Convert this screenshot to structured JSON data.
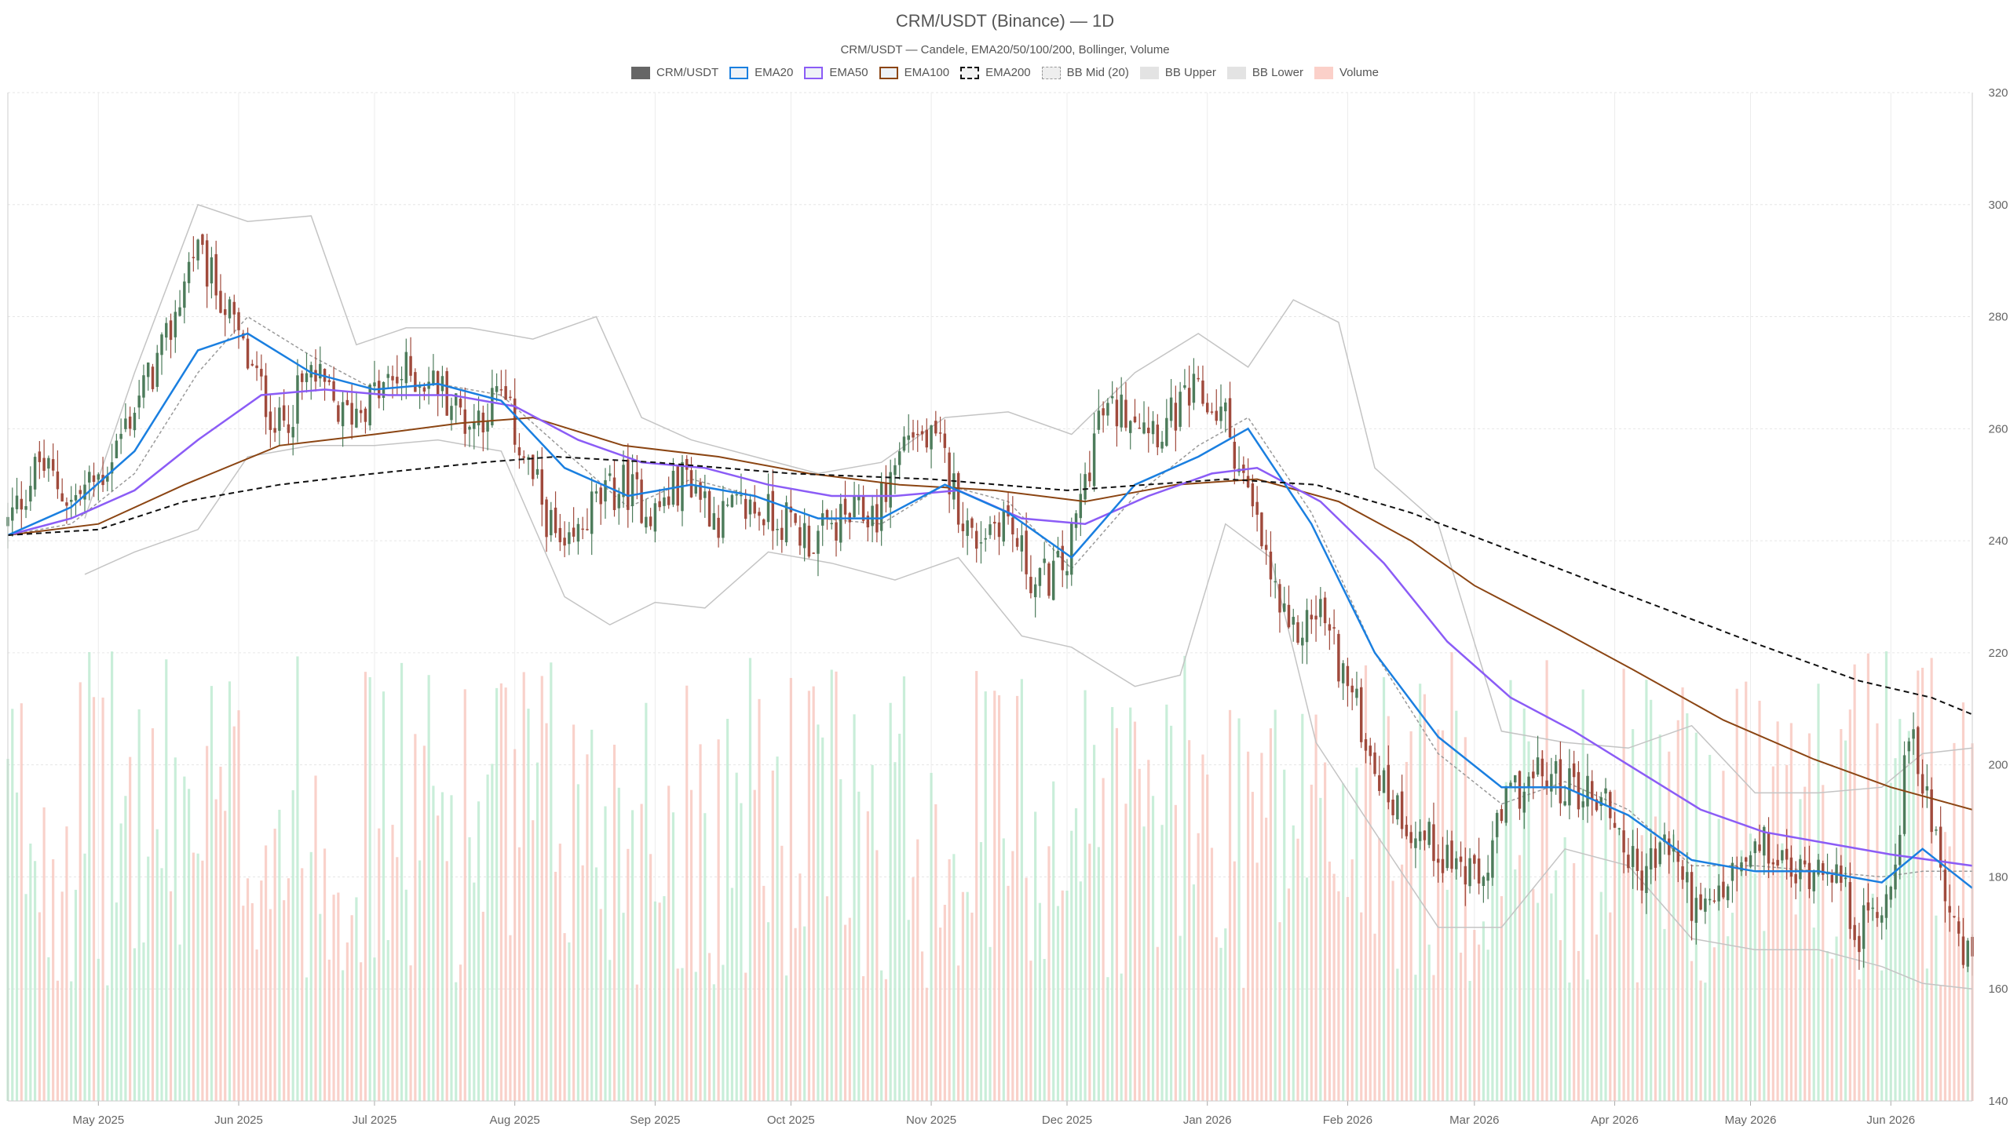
{
  "chart_data": {
    "type": "candlestick",
    "title": "CRM/USDT (Binance) — 1D",
    "subtitle": "CRM/USDT — Candele, EMA20/50/100/200, Bollinger, Volume",
    "legend": [
      {
        "label": "CRM/USDT",
        "color": "#666666",
        "style": "solid"
      },
      {
        "label": "EMA20",
        "color": "#1a7fe0",
        "style": "line"
      },
      {
        "label": "EMA50",
        "color": "#8b5cf6",
        "style": "line"
      },
      {
        "label": "EMA100",
        "color": "#8b4513",
        "style": "line"
      },
      {
        "label": "EMA200",
        "color": "#111111",
        "style": "dashed"
      },
      {
        "label": "BB Mid (20)",
        "color": "#999999",
        "style": "dotted"
      },
      {
        "label": "BB Upper",
        "color": "#bbbbbb",
        "style": "line"
      },
      {
        "label": "BB Lower",
        "color": "#bbbbbb",
        "style": "line"
      },
      {
        "label": "Volume",
        "color": "#f4a9a0",
        "style": "solid"
      }
    ],
    "colors": {
      "up": "#4d7c5b",
      "down": "#a04a3c",
      "vol_up": "#b7e8cc",
      "vol_down": "#f7c1b8"
    },
    "y_axis": {
      "min": 140,
      "max": 320,
      "ticks": [
        140,
        160,
        180,
        200,
        220,
        240,
        260,
        280,
        300,
        320
      ]
    },
    "x_range": [
      "2025-04-11",
      "2026-06-19"
    ],
    "x_ticks": [
      {
        "label": "May 2025",
        "date": "2025-05-01"
      },
      {
        "label": "Jun 2025",
        "date": "2025-06-01"
      },
      {
        "label": "Jul 2025",
        "date": "2025-07-01"
      },
      {
        "label": "Aug 2025",
        "date": "2025-08-01"
      },
      {
        "label": "Sep 2025",
        "date": "2025-09-01"
      },
      {
        "label": "Oct 2025",
        "date": "2025-10-01"
      },
      {
        "label": "Nov 2025",
        "date": "2025-11-01"
      },
      {
        "label": "Dec 2025",
        "date": "2025-12-01"
      },
      {
        "label": "Jan 2026",
        "date": "2026-01-01"
      },
      {
        "label": "Feb 2026",
        "date": "2026-02-01"
      },
      {
        "label": "Mar 2026",
        "date": "2026-03-01"
      },
      {
        "label": "Apr 2026",
        "date": "2026-04-01"
      },
      {
        "label": "May 2026",
        "date": "2026-05-01"
      },
      {
        "label": "Jun 2026",
        "date": "2026-06-01"
      }
    ],
    "close_anchors": [
      [
        "2025-04-11",
        243
      ],
      [
        "2025-04-18",
        254
      ],
      [
        "2025-04-25",
        247
      ],
      [
        "2025-05-02",
        252
      ],
      [
        "2025-05-09",
        264
      ],
      [
        "2025-05-16",
        275
      ],
      [
        "2025-05-22",
        292
      ],
      [
        "2025-05-28",
        284
      ],
      [
        "2025-06-03",
        272
      ],
      [
        "2025-06-10",
        260
      ],
      [
        "2025-06-17",
        270
      ],
      [
        "2025-06-24",
        262
      ],
      [
        "2025-07-01",
        266
      ],
      [
        "2025-07-08",
        270
      ],
      [
        "2025-07-15",
        268
      ],
      [
        "2025-07-22",
        261
      ],
      [
        "2025-07-29",
        266
      ],
      [
        "2025-08-05",
        251
      ],
      [
        "2025-08-12",
        236
      ],
      [
        "2025-08-18",
        246
      ],
      [
        "2025-08-25",
        250
      ],
      [
        "2025-09-01",
        245
      ],
      [
        "2025-09-08",
        252
      ],
      [
        "2025-09-15",
        244
      ],
      [
        "2025-09-22",
        246
      ],
      [
        "2025-09-29",
        244
      ],
      [
        "2025-10-06",
        240
      ],
      [
        "2025-10-13",
        244
      ],
      [
        "2025-10-20",
        245
      ],
      [
        "2025-10-27",
        260
      ],
      [
        "2025-11-03",
        256
      ],
      [
        "2025-11-10",
        240
      ],
      [
        "2025-11-17",
        245
      ],
      [
        "2025-11-24",
        232
      ],
      [
        "2025-12-01",
        236
      ],
      [
        "2025-12-08",
        262
      ],
      [
        "2025-12-15",
        264
      ],
      [
        "2025-12-22",
        260
      ],
      [
        "2025-12-29",
        266
      ],
      [
        "2026-01-05",
        262
      ],
      [
        "2026-01-12",
        242
      ],
      [
        "2026-01-19",
        222
      ],
      [
        "2026-01-26",
        228
      ],
      [
        "2026-02-02",
        212
      ],
      [
        "2026-02-09",
        196
      ],
      [
        "2026-02-16",
        188
      ],
      [
        "2026-02-23",
        184
      ],
      [
        "2026-03-02",
        178
      ],
      [
        "2026-03-09",
        195
      ],
      [
        "2026-03-16",
        198
      ],
      [
        "2026-03-23",
        196
      ],
      [
        "2026-03-30",
        194
      ],
      [
        "2026-04-06",
        180
      ],
      [
        "2026-04-13",
        186
      ],
      [
        "2026-04-20",
        172
      ],
      [
        "2026-04-27",
        180
      ],
      [
        "2026-05-04",
        185
      ],
      [
        "2026-05-11",
        180
      ],
      [
        "2026-05-18",
        184
      ],
      [
        "2026-05-25",
        170
      ],
      [
        "2026-06-01",
        178
      ],
      [
        "2026-06-05",
        205
      ],
      [
        "2026-06-10",
        192
      ],
      [
        "2026-06-16",
        166
      ],
      [
        "2026-06-19",
        165
      ]
    ],
    "indicator_lines": {
      "ema20": [
        [
          "2025-04-11",
          241
        ],
        [
          "2025-04-25",
          246
        ],
        [
          "2025-05-09",
          256
        ],
        [
          "2025-05-23",
          274
        ],
        [
          "2025-06-03",
          277
        ],
        [
          "2025-06-17",
          270
        ],
        [
          "2025-07-01",
          267
        ],
        [
          "2025-07-15",
          268
        ],
        [
          "2025-07-29",
          265
        ],
        [
          "2025-08-12",
          253
        ],
        [
          "2025-08-26",
          248
        ],
        [
          "2025-09-09",
          250
        ],
        [
          "2025-09-23",
          248
        ],
        [
          "2025-10-07",
          244
        ],
        [
          "2025-10-21",
          244
        ],
        [
          "2025-11-04",
          250
        ],
        [
          "2025-11-18",
          245
        ],
        [
          "2025-12-02",
          237
        ],
        [
          "2025-12-16",
          250
        ],
        [
          "2025-12-30",
          255
        ],
        [
          "2026-01-10",
          260
        ],
        [
          "2026-01-24",
          243
        ],
        [
          "2026-02-07",
          220
        ],
        [
          "2026-02-21",
          205
        ],
        [
          "2026-03-07",
          196
        ],
        [
          "2026-03-21",
          196
        ],
        [
          "2026-04-04",
          191
        ],
        [
          "2026-04-18",
          183
        ],
        [
          "2026-05-02",
          181
        ],
        [
          "2026-05-16",
          181
        ],
        [
          "2026-05-30",
          179
        ],
        [
          "2026-06-08",
          185
        ],
        [
          "2026-06-19",
          178
        ]
      ],
      "ema50": [
        [
          "2025-04-11",
          241
        ],
        [
          "2025-04-25",
          244
        ],
        [
          "2025-05-09",
          249
        ],
        [
          "2025-05-23",
          258
        ],
        [
          "2025-06-06",
          266
        ],
        [
          "2025-06-20",
          267
        ],
        [
          "2025-07-04",
          266
        ],
        [
          "2025-07-18",
          266
        ],
        [
          "2025-08-01",
          264
        ],
        [
          "2025-08-15",
          258
        ],
        [
          "2025-08-29",
          254
        ],
        [
          "2025-09-12",
          253
        ],
        [
          "2025-09-26",
          250
        ],
        [
          "2025-10-10",
          248
        ],
        [
          "2025-10-24",
          248
        ],
        [
          "2025-11-07",
          249
        ],
        [
          "2025-11-21",
          244
        ],
        [
          "2025-12-05",
          243
        ],
        [
          "2025-12-19",
          248
        ],
        [
          "2026-01-02",
          252
        ],
        [
          "2026-01-12",
          253
        ],
        [
          "2026-01-26",
          247
        ],
        [
          "2026-02-09",
          236
        ],
        [
          "2026-02-23",
          222
        ],
        [
          "2026-03-09",
          212
        ],
        [
          "2026-03-23",
          206
        ],
        [
          "2026-04-06",
          199
        ],
        [
          "2026-04-20",
          192
        ],
        [
          "2026-05-04",
          188
        ],
        [
          "2026-05-18",
          186
        ],
        [
          "2026-06-01",
          184
        ],
        [
          "2026-06-19",
          182
        ]
      ],
      "ema100": [
        [
          "2025-04-11",
          241
        ],
        [
          "2025-05-01",
          243
        ],
        [
          "2025-05-20",
          250
        ],
        [
          "2025-06-10",
          257
        ],
        [
          "2025-07-01",
          259
        ],
        [
          "2025-07-20",
          261
        ],
        [
          "2025-08-05",
          262
        ],
        [
          "2025-08-25",
          257
        ],
        [
          "2025-09-15",
          255
        ],
        [
          "2025-10-05",
          252
        ],
        [
          "2025-10-25",
          250
        ],
        [
          "2025-11-15",
          249
        ],
        [
          "2025-12-05",
          247
        ],
        [
          "2025-12-25",
          250
        ],
        [
          "2026-01-12",
          251
        ],
        [
          "2026-01-30",
          247
        ],
        [
          "2026-02-15",
          240
        ],
        [
          "2026-03-01",
          232
        ],
        [
          "2026-03-20",
          224
        ],
        [
          "2026-04-05",
          217
        ],
        [
          "2026-04-25",
          208
        ],
        [
          "2026-05-15",
          201
        ],
        [
          "2026-06-01",
          196
        ],
        [
          "2026-06-19",
          192
        ]
      ],
      "ema200": [
        [
          "2025-04-11",
          241
        ],
        [
          "2025-05-01",
          242
        ],
        [
          "2025-05-20",
          247
        ],
        [
          "2025-06-10",
          250
        ],
        [
          "2025-07-01",
          252
        ],
        [
          "2025-07-25",
          254
        ],
        [
          "2025-08-10",
          255
        ],
        [
          "2025-09-01",
          254
        ],
        [
          "2025-10-01",
          252
        ],
        [
          "2025-11-01",
          251
        ],
        [
          "2025-12-01",
          249
        ],
        [
          "2026-01-05",
          251
        ],
        [
          "2026-01-25",
          250
        ],
        [
          "2026-02-15",
          245
        ],
        [
          "2026-03-10",
          238
        ],
        [
          "2026-04-05",
          230
        ],
        [
          "2026-05-01",
          222
        ],
        [
          "2026-05-25",
          215
        ],
        [
          "2026-06-10",
          212
        ],
        [
          "2026-06-19",
          209
        ]
      ],
      "bb_mid": [
        [
          "2025-04-11",
          241
        ],
        [
          "2025-04-25",
          243
        ],
        [
          "2025-05-09",
          252
        ],
        [
          "2025-05-23",
          270
        ],
        [
          "2025-06-03",
          280
        ],
        [
          "2025-06-17",
          273
        ],
        [
          "2025-07-01",
          267
        ],
        [
          "2025-07-15",
          268
        ],
        [
          "2025-07-29",
          266
        ],
        [
          "2025-08-12",
          256
        ],
        [
          "2025-08-26",
          246
        ],
        [
          "2025-09-09",
          251
        ],
        [
          "2025-09-23",
          248
        ],
        [
          "2025-10-07",
          244
        ],
        [
          "2025-10-21",
          243
        ],
        [
          "2025-11-04",
          250
        ],
        [
          "2025-11-18",
          247
        ],
        [
          "2025-12-02",
          235
        ],
        [
          "2025-12-16",
          248
        ],
        [
          "2025-12-30",
          257
        ],
        [
          "2026-01-10",
          262
        ],
        [
          "2026-01-24",
          245
        ],
        [
          "2026-02-07",
          220
        ],
        [
          "2026-02-21",
          202
        ],
        [
          "2026-03-07",
          193
        ],
        [
          "2026-03-21",
          197
        ],
        [
          "2026-04-04",
          192
        ],
        [
          "2026-04-18",
          182
        ],
        [
          "2026-05-02",
          182
        ],
        [
          "2026-05-16",
          181
        ],
        [
          "2026-05-30",
          180
        ],
        [
          "2026-06-08",
          181
        ],
        [
          "2026-06-19",
          181
        ]
      ],
      "bb_upper": [
        [
          "2025-04-28",
          244
        ],
        [
          "2025-05-09",
          270
        ],
        [
          "2025-05-23",
          300
        ],
        [
          "2025-06-03",
          297
        ],
        [
          "2025-06-17",
          298
        ],
        [
          "2025-06-27",
          275
        ],
        [
          "2025-07-08",
          278
        ],
        [
          "2025-07-22",
          278
        ],
        [
          "2025-08-05",
          276
        ],
        [
          "2025-08-19",
          280
        ],
        [
          "2025-08-29",
          262
        ],
        [
          "2025-09-09",
          258
        ],
        [
          "2025-09-23",
          255
        ],
        [
          "2025-10-07",
          252
        ],
        [
          "2025-10-21",
          254
        ],
        [
          "2025-11-04",
          262
        ],
        [
          "2025-11-18",
          263
        ],
        [
          "2025-12-02",
          259
        ],
        [
          "2025-12-16",
          270
        ],
        [
          "2025-12-30",
          277
        ],
        [
          "2026-01-10",
          271
        ],
        [
          "2026-01-20",
          283
        ],
        [
          "2026-01-30",
          279
        ],
        [
          "2026-02-07",
          253
        ],
        [
          "2026-02-21",
          243
        ],
        [
          "2026-03-07",
          206
        ],
        [
          "2026-03-21",
          204
        ],
        [
          "2026-04-04",
          203
        ],
        [
          "2026-04-18",
          207
        ],
        [
          "2026-05-02",
          195
        ],
        [
          "2026-05-16",
          195
        ],
        [
          "2026-05-30",
          196
        ],
        [
          "2026-06-08",
          202
        ],
        [
          "2026-06-19",
          203
        ]
      ],
      "bb_lower": [
        [
          "2025-04-28",
          234
        ],
        [
          "2025-05-09",
          238
        ],
        [
          "2025-05-23",
          242
        ],
        [
          "2025-06-03",
          255
        ],
        [
          "2025-06-17",
          257
        ],
        [
          "2025-07-01",
          257
        ],
        [
          "2025-07-15",
          258
        ],
        [
          "2025-07-29",
          256
        ],
        [
          "2025-08-12",
          230
        ],
        [
          "2025-08-22",
          225
        ],
        [
          "2025-09-01",
          229
        ],
        [
          "2025-09-12",
          228
        ],
        [
          "2025-09-26",
          238
        ],
        [
          "2025-10-10",
          236
        ],
        [
          "2025-10-24",
          233
        ],
        [
          "2025-11-07",
          237
        ],
        [
          "2025-11-21",
          223
        ],
        [
          "2025-12-02",
          221
        ],
        [
          "2025-12-16",
          214
        ],
        [
          "2025-12-26",
          216
        ],
        [
          "2026-01-05",
          243
        ],
        [
          "2026-01-15",
          237
        ],
        [
          "2026-01-25",
          204
        ],
        [
          "2026-02-07",
          188
        ],
        [
          "2026-02-21",
          171
        ],
        [
          "2026-03-07",
          171
        ],
        [
          "2026-03-21",
          185
        ],
        [
          "2026-04-04",
          182
        ],
        [
          "2026-04-18",
          169
        ],
        [
          "2026-05-02",
          167
        ],
        [
          "2026-05-16",
          167
        ],
        [
          "2026-05-30",
          164
        ],
        [
          "2026-06-08",
          161
        ],
        [
          "2026-06-19",
          160
        ]
      ]
    }
  }
}
